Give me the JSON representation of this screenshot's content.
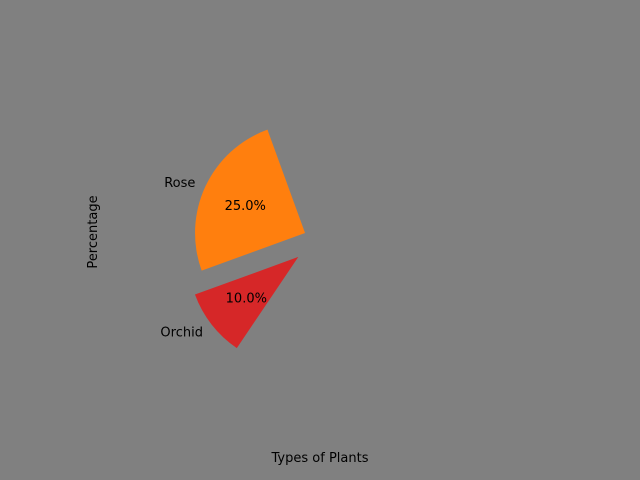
{
  "chart_data": {
    "type": "pie",
    "xlabel": "Types of Plants",
    "ylabel": "Percentage",
    "slices": [
      {
        "label": "Rose",
        "value": 25.0,
        "pct_label": "25.0%",
        "color": "#ff7f0e"
      },
      {
        "label": "Orchid",
        "value": 10.0,
        "pct_label": "10.0%",
        "color": "#d62728"
      }
    ]
  },
  "background_color": "#808080"
}
